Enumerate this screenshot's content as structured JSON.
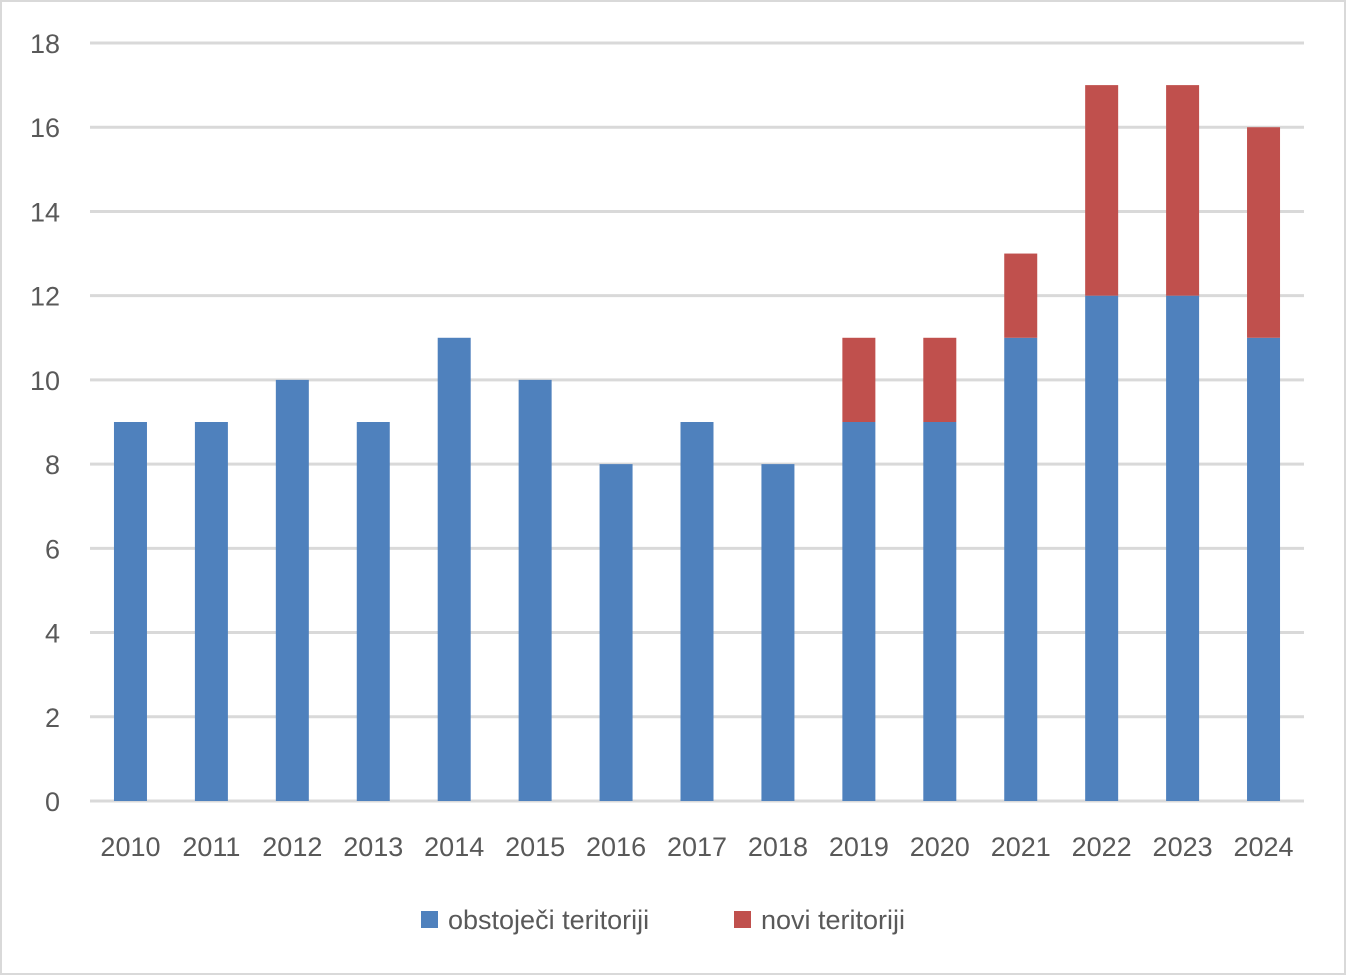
{
  "chart_data": {
    "type": "bar",
    "stacked": true,
    "categories": [
      "2010",
      "2011",
      "2012",
      "2013",
      "2014",
      "2015",
      "2016",
      "2017",
      "2018",
      "2019",
      "2020",
      "2021",
      "2022",
      "2023",
      "2024"
    ],
    "series": [
      {
        "name": "obstoječi teritoriji",
        "color": "#4f81bd",
        "values": [
          9,
          9,
          10,
          9,
          11,
          10,
          8,
          9,
          8,
          9,
          9,
          11,
          12,
          12,
          11
        ]
      },
      {
        "name": "novi teritoriji",
        "color": "#c0504d",
        "values": [
          0,
          0,
          0,
          0,
          0,
          0,
          0,
          0,
          0,
          2,
          2,
          2,
          5,
          5,
          5
        ]
      }
    ],
    "yticks": [
      0,
      2,
      4,
      6,
      8,
      10,
      12,
      14,
      16,
      18
    ],
    "ylim": [
      0,
      18
    ],
    "grid": true,
    "legend_position": "bottom",
    "gridline_color": "#d9d9d9"
  }
}
